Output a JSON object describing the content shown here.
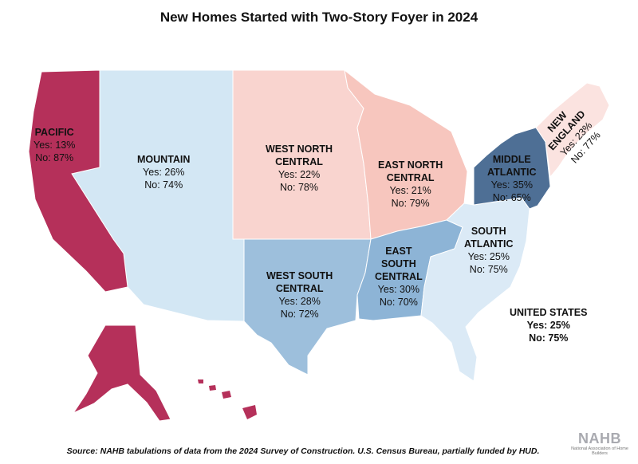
{
  "title": "New Homes Started with Two-Story Foyer in 2024",
  "source": "Source: NAHB tabulations of data from the 2024 Survey of Construction. U.S. Census Bureau, partially funded by HUD.",
  "logo": {
    "text": "NAHB",
    "subtext": "National Association of Home Builders"
  },
  "colors": {
    "pacific": "#b5305a",
    "mountain": "#d3e7f4",
    "west_north_central": "#f9d4cf",
    "east_north_central": "#f7c6be",
    "west_south_central": "#9dbfdc",
    "east_south_central": "#8db4d6",
    "south_atlantic": "#dbeaf6",
    "middle_atlantic": "#4e6f95",
    "new_england": "#fbe3e0",
    "border": "#ffffff"
  },
  "regions": {
    "pacific": {
      "name": "PACIFIC",
      "yes": "Yes: 13%",
      "no": "No: 87%"
    },
    "mountain": {
      "name": "MOUNTAIN",
      "yes": "Yes: 26%",
      "no": "No: 74%"
    },
    "wnc": {
      "name1": "WEST NORTH",
      "name2": "CENTRAL",
      "yes": "Yes: 22%",
      "no": "No: 78%"
    },
    "enc": {
      "name1": "EAST NORTH",
      "name2": "CENTRAL",
      "yes": "Yes: 21%",
      "no": "No: 79%"
    },
    "midatl": {
      "name1": "MIDDLE",
      "name2": "ATLANTIC",
      "yes": "Yes: 35%",
      "no": "No: 65%"
    },
    "ne": {
      "name1": "NEW",
      "name2": "ENGLAND",
      "yes": "Yes: 23%",
      "no": "No: 77%"
    },
    "satl": {
      "name1": "SOUTH",
      "name2": "ATLANTIC",
      "yes": "Yes: 25%",
      "no": "No: 75%"
    },
    "esc": {
      "name1": "EAST",
      "name2": "SOUTH",
      "name3": "CENTRAL",
      "yes": "Yes: 30%",
      "no": "No: 70%"
    },
    "wsc": {
      "name1": "WEST SOUTH",
      "name2": "CENTRAL",
      "yes": "Yes: 28%",
      "no": "No: 72%"
    }
  },
  "us_total": {
    "name": "UNITED STATES",
    "yes": "Yes: 25%",
    "no": "No: 75%"
  }
}
